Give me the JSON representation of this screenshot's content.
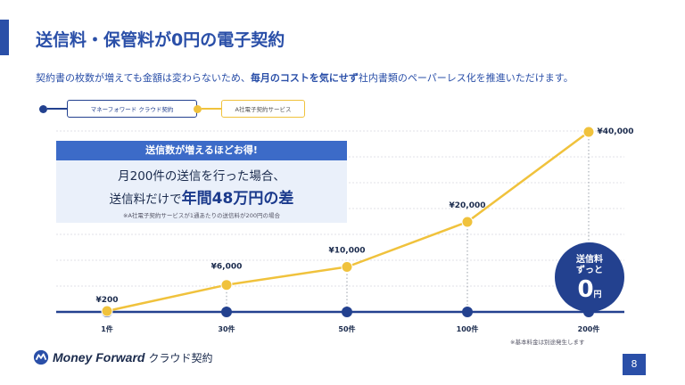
{
  "header": {
    "title": "送信料・保管料が0円の電子契約",
    "subtitle_pre": "契約書の枚数が増えても金額は変わらないため、",
    "subtitle_bold": "毎月のコストを気にせず",
    "subtitle_post": "社内書類のペーパーレス化を推進いただけます。"
  },
  "legend": {
    "series_a": "マネーフォワード クラウド契約",
    "series_b": "A社電子契約サービス"
  },
  "callout": {
    "heading": "送信数が増えるほどお得!",
    "line1": "月200件の送信を行った場合、",
    "line2_pre": "送信料だけで",
    "line2_em": "年間48万円の差",
    "note": "※A社電子契約サービスが1通あたりの送信料が200円の場合"
  },
  "badge": {
    "line1": "送信料",
    "line2": "ずっと",
    "value": "0",
    "unit": "円"
  },
  "footnote": "※基本料金は別途発生します",
  "logo": {
    "brand": "Money Forward",
    "product": "クラウド契約"
  },
  "page_number": "8",
  "colors": {
    "accent": "#2a4fa8",
    "navy": "#23418f",
    "yellow": "#f0c23c"
  },
  "chart_data": {
    "type": "line",
    "categories": [
      "1件",
      "30件",
      "50件",
      "100件",
      "200件"
    ],
    "series": [
      {
        "name": "マネーフォワード クラウド契約",
        "values": [
          0,
          0,
          0,
          0,
          0
        ]
      },
      {
        "name": "A社電子契約サービス",
        "values": [
          200,
          6000,
          10000,
          20000,
          40000
        ],
        "labels": [
          "¥200",
          "¥6,000",
          "¥10,000",
          "¥20,000",
          "¥40,000"
        ]
      }
    ],
    "ylim": [
      0,
      40000
    ],
    "grid": true,
    "legend_position": "top-left"
  }
}
